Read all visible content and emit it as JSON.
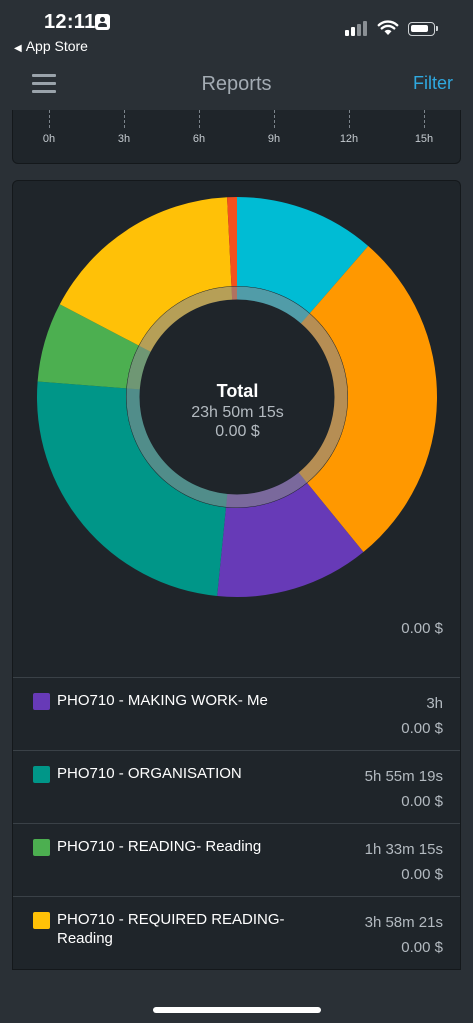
{
  "status_bar": {
    "time": "12:11",
    "back_app": "App Store"
  },
  "navbar": {
    "title": "Reports",
    "filter_label": "Filter"
  },
  "axis": {
    "ticks": [
      "0h",
      "3h",
      "6h",
      "9h",
      "12h",
      "15h"
    ]
  },
  "chart_data": {
    "type": "pie",
    "center": {
      "title": "Total",
      "duration": "23h 50m 15s",
      "amount": "0.00 $"
    },
    "slices": [
      {
        "color": "#00bcd4",
        "value": 11.5
      },
      {
        "color": "#ff9800",
        "value": 28.0
      },
      {
        "color": "#673ab7",
        "value": 12.6
      },
      {
        "color": "#009688",
        "value": 24.9
      },
      {
        "color": "#4caf50",
        "value": 6.5
      },
      {
        "color": "#ffc107",
        "value": 16.7
      },
      {
        "color": "#f4511e",
        "value": 0.8
      }
    ]
  },
  "items": [
    {
      "name": "",
      "duration": "",
      "amount": "0.00 $",
      "color": "#ff9800"
    },
    {
      "name": "PHO710 - MAKING WORK- Me",
      "duration": "3h",
      "amount": "0.00 $",
      "color": "#673ab7"
    },
    {
      "name": "PHO710 - ORGANISATION",
      "duration": "5h 55m 19s",
      "amount": "0.00 $",
      "color": "#009688"
    },
    {
      "name": "PHO710 - READING- Reading",
      "duration": "1h 33m 15s",
      "amount": "0.00 $",
      "color": "#4caf50"
    },
    {
      "name": "PHO710 - REQUIRED READING- Reading",
      "duration": "3h 58m 21s",
      "amount": "0.00 $",
      "color": "#ffc107"
    }
  ]
}
